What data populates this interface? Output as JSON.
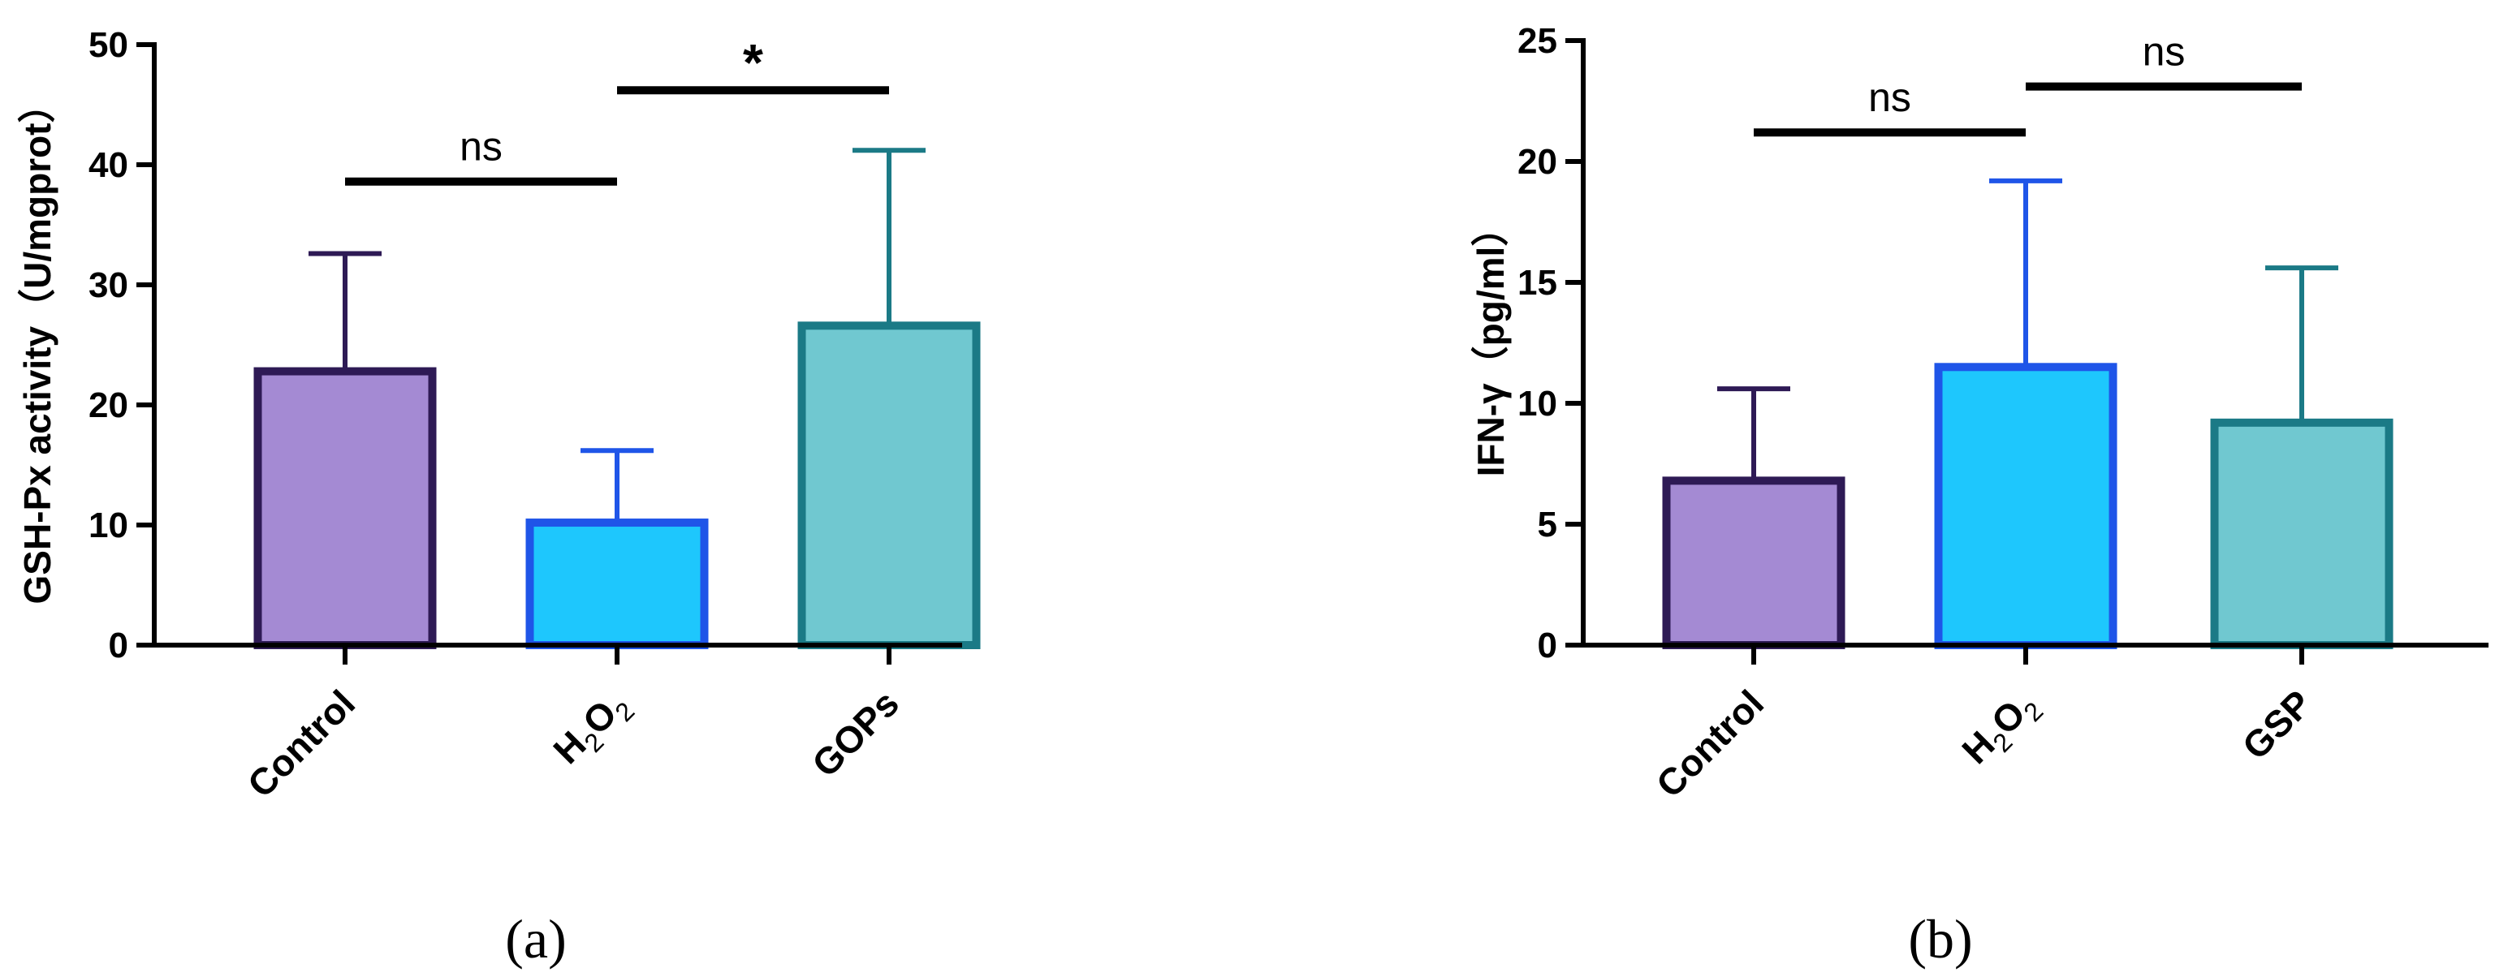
{
  "chart_data": [
    {
      "type": "bar",
      "panel_label": "(a)",
      "ylabel": "GSH-Px activity（U/mgprot）",
      "ylim": [
        0,
        50
      ],
      "yticks": [
        "0",
        "10",
        "20",
        "30",
        "40",
        "50"
      ],
      "categories": [
        {
          "label": "Control",
          "sub": null
        },
        {
          "label": "H2O2",
          "base": "H",
          "sub1": "2",
          "mid": "O",
          "sub2": "2"
        },
        {
          "label": "GOPs",
          "sub": null
        }
      ],
      "values": [
        22.8,
        10.2,
        26.6
      ],
      "errors_upper": [
        32.6,
        16.2,
        41.2
      ],
      "fill_colors": [
        "#a48ad3",
        "#1ec7fd",
        "#70c8d0"
      ],
      "edge_colors": [
        "#2e1a55",
        "#1f55e8",
        "#1b7a86"
      ],
      "significance": [
        {
          "from": 0,
          "to": 1,
          "label": "ns",
          "y": 38.6
        },
        {
          "from": 1,
          "to": 2,
          "label": "*",
          "y": 46.2
        }
      ]
    },
    {
      "type": "bar",
      "panel_label": "(b)",
      "ylabel": "IFN-γ（pg/ml）",
      "ylim": [
        0,
        25
      ],
      "yticks": [
        "0",
        "5",
        "10",
        "15",
        "20",
        "25"
      ],
      "categories": [
        {
          "label": "Control",
          "sub": null
        },
        {
          "label": "H2O2",
          "base": "H",
          "sub1": "2",
          "mid": "O",
          "sub2": "2"
        },
        {
          "label": "GSP",
          "sub": null
        }
      ],
      "values": [
        6.8,
        11.5,
        9.2
      ],
      "errors_upper": [
        10.6,
        19.2,
        15.6
      ],
      "fill_colors": [
        "#a48ad3",
        "#1ec7fd",
        "#70c8d0"
      ],
      "edge_colors": [
        "#2e1a55",
        "#1f55e8",
        "#1b7a86"
      ],
      "significance": [
        {
          "from": 0,
          "to": 1,
          "label": "ns",
          "y": 21.2
        },
        {
          "from": 1,
          "to": 2,
          "label": "ns",
          "y": 23.1
        }
      ]
    }
  ]
}
